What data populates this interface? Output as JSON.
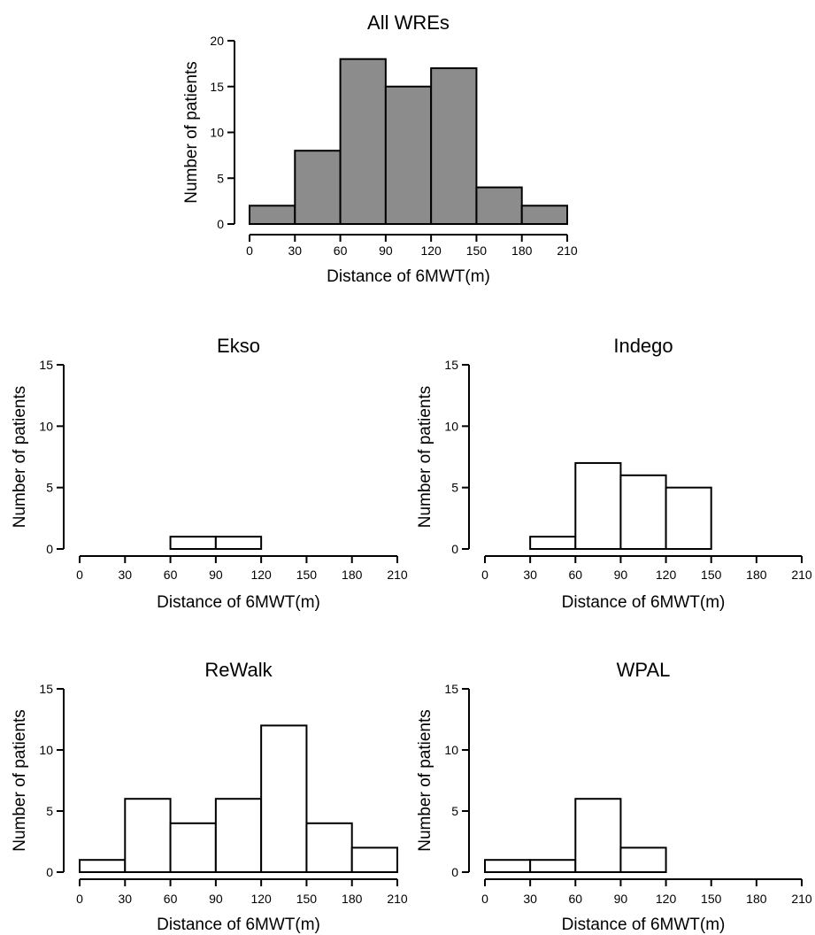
{
  "chart_data": [
    {
      "type": "bar",
      "title": "All WREs",
      "xlabel": "Distance of 6MWT(m)",
      "ylabel": "Number of patients",
      "bin_edges": [
        0,
        30,
        60,
        90,
        120,
        150,
        180,
        210
      ],
      "values": [
        2,
        8,
        18,
        15,
        17,
        4,
        2
      ],
      "xlim": [
        0,
        210
      ],
      "ylim": [
        0,
        20
      ],
      "yticks": [
        0,
        5,
        10,
        15,
        20
      ],
      "xticks": [
        0,
        30,
        60,
        90,
        120,
        150,
        180,
        210
      ],
      "bar_color": "#8c8c8c",
      "grid": false
    },
    {
      "type": "bar",
      "title": "Ekso",
      "xlabel": "Distance of 6MWT(m)",
      "ylabel": "Number of patients",
      "bin_edges": [
        0,
        30,
        60,
        90,
        120,
        150,
        180,
        210
      ],
      "values": [
        0,
        0,
        1,
        1,
        0,
        0,
        0
      ],
      "xlim": [
        0,
        210
      ],
      "ylim": [
        0,
        15
      ],
      "yticks": [
        0,
        5,
        10,
        15
      ],
      "xticks": [
        0,
        30,
        60,
        90,
        120,
        150,
        180,
        210
      ],
      "bar_color": "#ffffff",
      "grid": false
    },
    {
      "type": "bar",
      "title": "Indego",
      "xlabel": "Distance of 6MWT(m)",
      "ylabel": "Number of patients",
      "bin_edges": [
        0,
        30,
        60,
        90,
        120,
        150,
        180,
        210
      ],
      "values": [
        0,
        1,
        7,
        6,
        5,
        0,
        0
      ],
      "xlim": [
        0,
        210
      ],
      "ylim": [
        0,
        15
      ],
      "yticks": [
        0,
        5,
        10,
        15
      ],
      "xticks": [
        0,
        30,
        60,
        90,
        120,
        150,
        180,
        210
      ],
      "bar_color": "#ffffff",
      "grid": false
    },
    {
      "type": "bar",
      "title": "ReWalk",
      "xlabel": "Distance of 6MWT(m)",
      "ylabel": "Number of patients",
      "bin_edges": [
        0,
        30,
        60,
        90,
        120,
        150,
        180,
        210
      ],
      "values": [
        1,
        6,
        4,
        6,
        12,
        4,
        2
      ],
      "xlim": [
        0,
        210
      ],
      "ylim": [
        0,
        15
      ],
      "yticks": [
        0,
        5,
        10,
        15
      ],
      "xticks": [
        0,
        30,
        60,
        90,
        120,
        150,
        180,
        210
      ],
      "bar_color": "#ffffff",
      "grid": false
    },
    {
      "type": "bar",
      "title": "WPAL",
      "xlabel": "Distance of 6MWT(m)",
      "ylabel": "Number of patients",
      "bin_edges": [
        0,
        30,
        60,
        90,
        120,
        150,
        180,
        210
      ],
      "values": [
        1,
        1,
        6,
        2,
        0,
        0,
        0
      ],
      "xlim": [
        0,
        210
      ],
      "ylim": [
        0,
        15
      ],
      "yticks": [
        0,
        5,
        10,
        15
      ],
      "xticks": [
        0,
        30,
        60,
        90,
        120,
        150,
        180,
        210
      ],
      "bar_color": "#ffffff",
      "grid": false
    }
  ]
}
